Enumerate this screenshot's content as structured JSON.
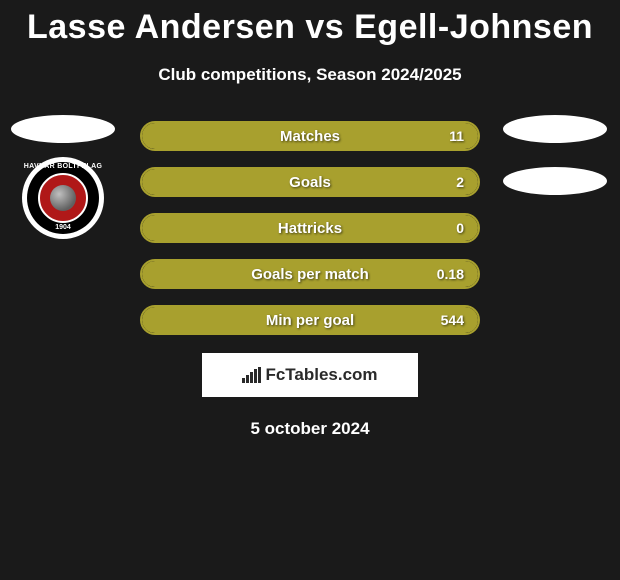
{
  "title": "Lasse Andersen vs Egell-Johnsen",
  "subtitle": "Club competitions, Season 2024/2025",
  "date": "5 october 2024",
  "brand": "FcTables.com",
  "badge": {
    "top_text": "HAVNAR BÓLTFELAG",
    "year": "1904"
  },
  "colors": {
    "background": "#1a1a1a",
    "bar_fill": "#a8a02e",
    "bar_border": "#a8a02e",
    "text": "#ffffff",
    "brand_bg": "#ffffff",
    "brand_text": "#2a2a2a"
  },
  "stats": [
    {
      "label": "Matches",
      "value": "11",
      "fill_pct": 100
    },
    {
      "label": "Goals",
      "value": "2",
      "fill_pct": 100
    },
    {
      "label": "Hattricks",
      "value": "0",
      "fill_pct": 100
    },
    {
      "label": "Goals per match",
      "value": "0.18",
      "fill_pct": 100
    },
    {
      "label": "Min per goal",
      "value": "544",
      "fill_pct": 100
    }
  ]
}
